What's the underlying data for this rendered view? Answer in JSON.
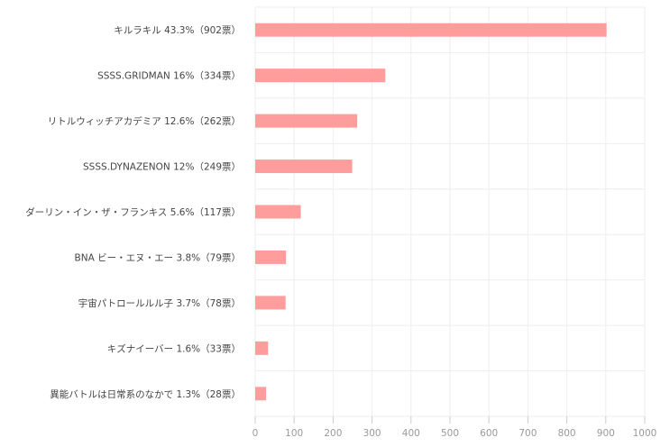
{
  "chart_data": {
    "type": "bar",
    "orientation": "horizontal",
    "categories": [
      "キルラキル 43.3%（902票）",
      "SSSS.GRIDMAN 16%（334票）",
      "リトルウィッチアカデミア 12.6%（262票）",
      "SSSS.DYNAZENON 12%（249票）",
      "ダーリン・イン・ザ・フランキス 5.6%（117票）",
      "BNA ビー・エヌ・エー 3.8%（79票）",
      "宇宙パトロールルル子 3.7%（78票）",
      "キズナイーバー 1.6%（33票）",
      "異能バトルは日常系のなかで 1.3%（28票）"
    ],
    "values": [
      902,
      334,
      262,
      249,
      117,
      79,
      78,
      33,
      28
    ],
    "xlim": [
      0,
      1000
    ],
    "xticks": [
      "0",
      "100",
      "200",
      "300",
      "400",
      "500",
      "600",
      "700",
      "800",
      "900",
      "1000"
    ],
    "grid": true,
    "bar_color": "#ff9c9c",
    "title": "",
    "xlabel": "",
    "ylabel": ""
  }
}
